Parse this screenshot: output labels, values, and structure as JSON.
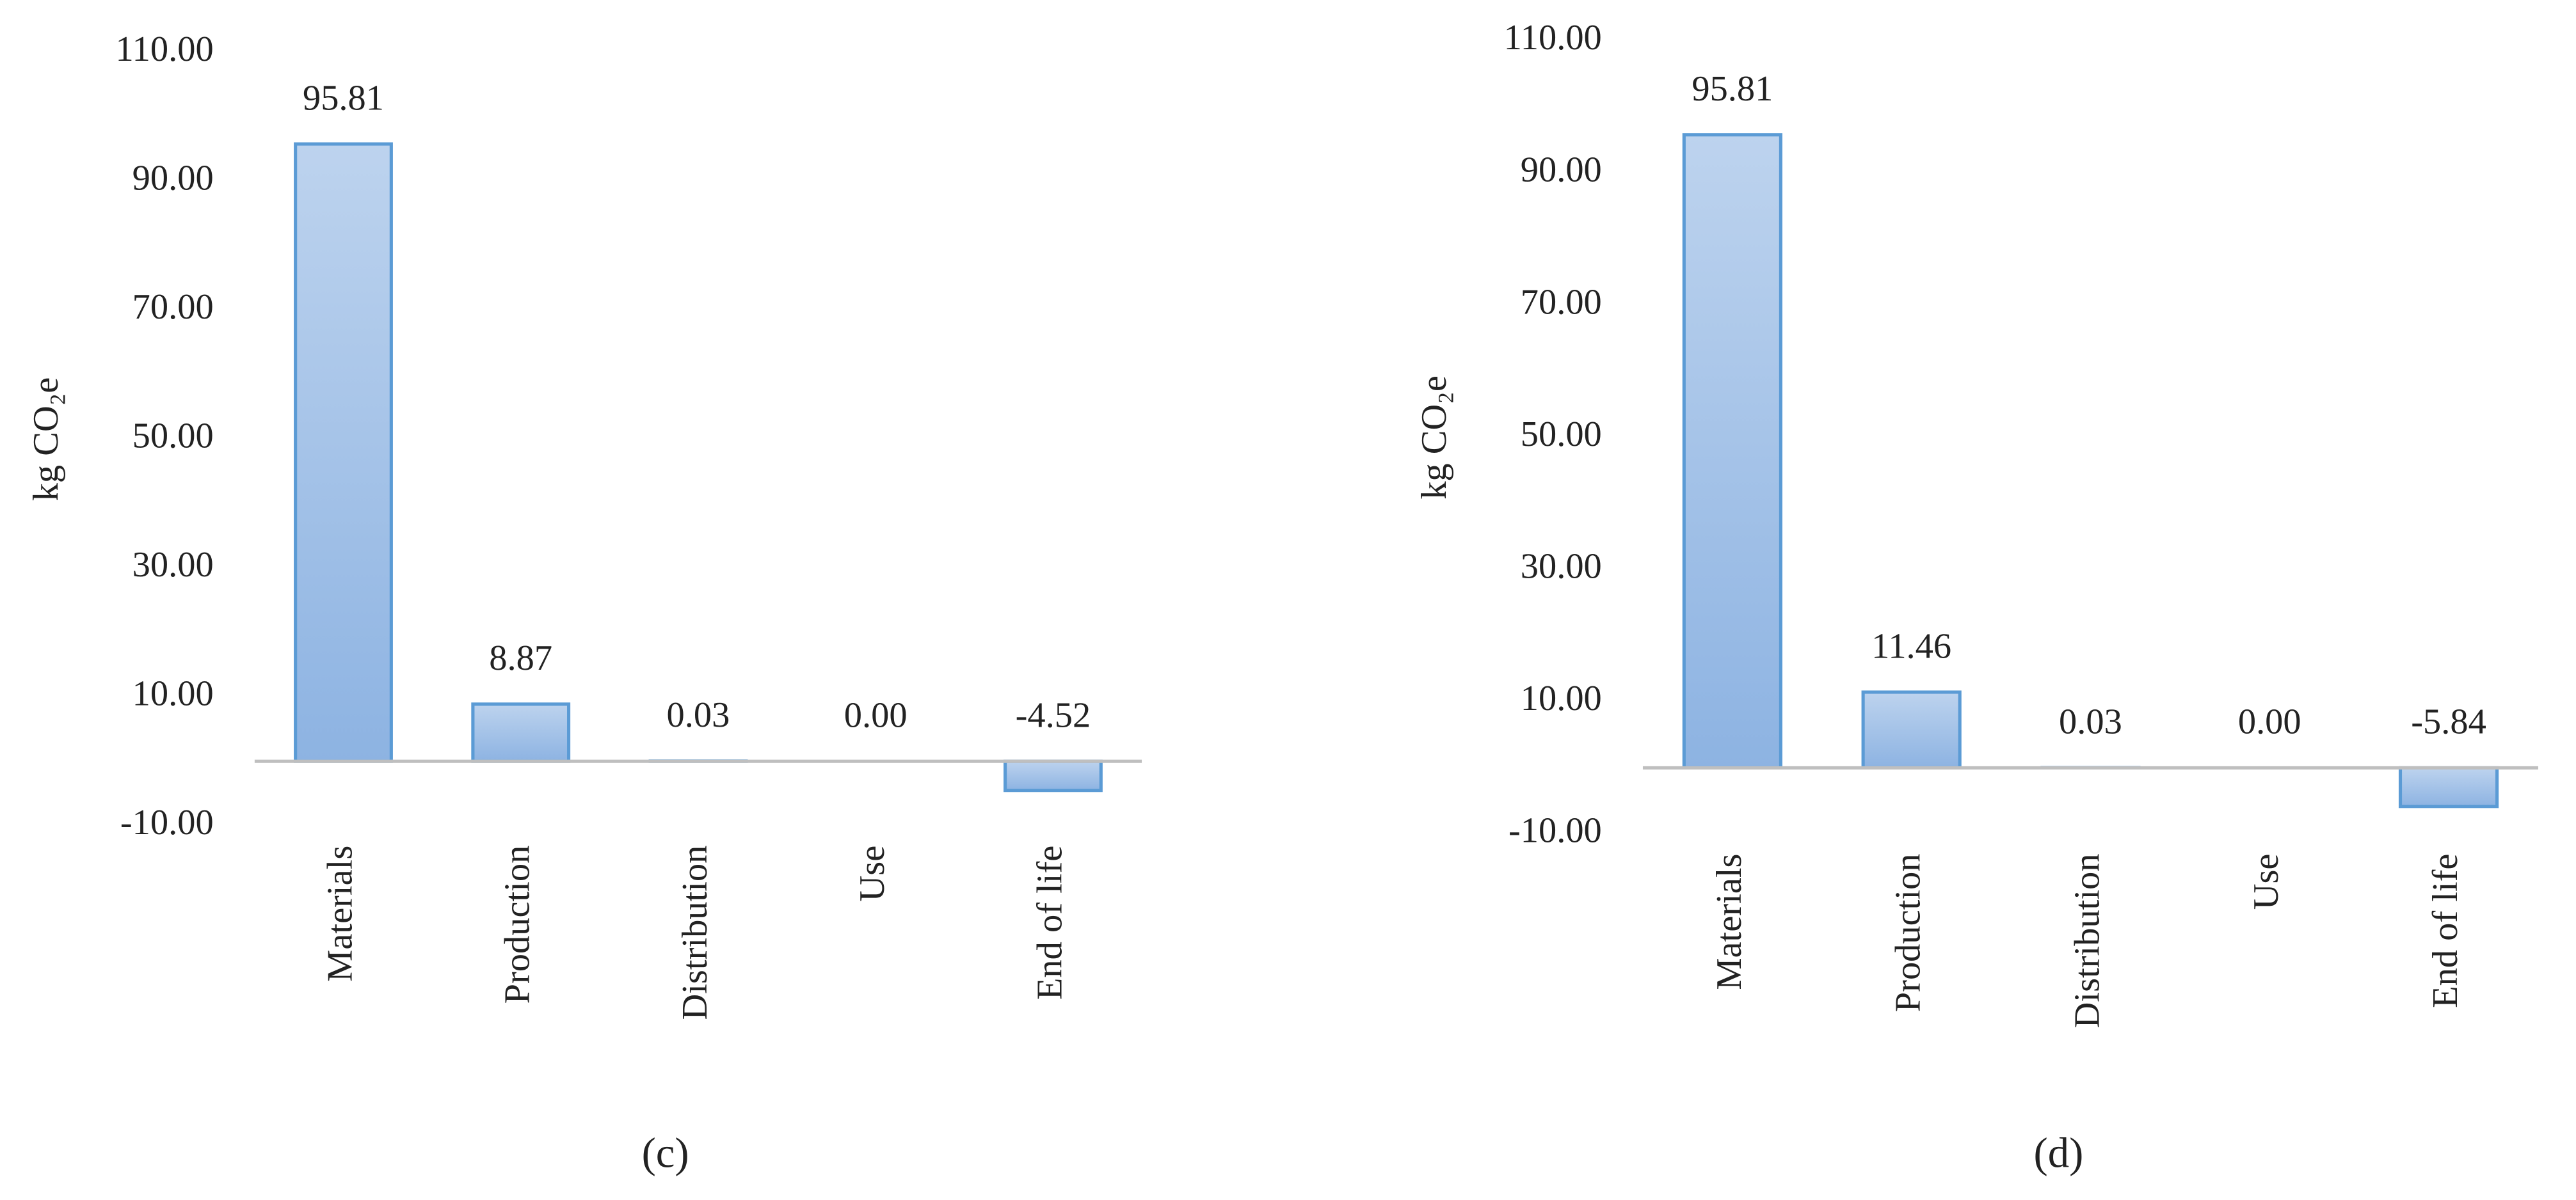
{
  "chart_data": [
    {
      "type": "bar",
      "caption": "(c)",
      "ylabel": "kg CO₂e",
      "categories": [
        "Materials",
        "Production",
        "Distribution",
        "Use",
        "End of life"
      ],
      "values": [
        95.81,
        8.87,
        0.03,
        0,
        -4.52
      ],
      "value_labels": [
        "95.81",
        "8.87",
        "0.03",
        "0.00",
        "-4.52"
      ],
      "color": "#5b9bd5",
      "ylim": [
        -10,
        110
      ],
      "yticks": [
        {
          "value": -10,
          "label": "-10.00"
        },
        {
          "value": 10,
          "label": "10.00"
        },
        {
          "value": 30,
          "label": "30.00"
        },
        {
          "value": 50,
          "label": "50.00"
        },
        {
          "value": 70,
          "label": "70.00"
        },
        {
          "value": 90,
          "label": "90.00"
        },
        {
          "value": 110,
          "label": "110.00"
        }
      ],
      "grid": false
    },
    {
      "type": "bar",
      "caption": "(d)",
      "ylabel": "kg CO₂e",
      "categories": [
        "Materials",
        "Production",
        "Distribution",
        "Use",
        "End of life"
      ],
      "values": [
        95.81,
        11.46,
        0.03,
        0,
        -5.84
      ],
      "value_labels": [
        "95.81",
        "11.46",
        "0.03",
        "0.00",
        "-5.84"
      ],
      "color": "#5b9bd5",
      "ylim": [
        -10,
        110
      ],
      "yticks": [
        {
          "value": -10,
          "label": "-10.00"
        },
        {
          "value": 10,
          "label": "10.00"
        },
        {
          "value": 30,
          "label": "30.00"
        },
        {
          "value": 50,
          "label": "50.00"
        },
        {
          "value": 70,
          "label": "70.00"
        },
        {
          "value": 90,
          "label": "90.00"
        },
        {
          "value": 110,
          "label": "110.00"
        }
      ],
      "grid": false
    }
  ]
}
